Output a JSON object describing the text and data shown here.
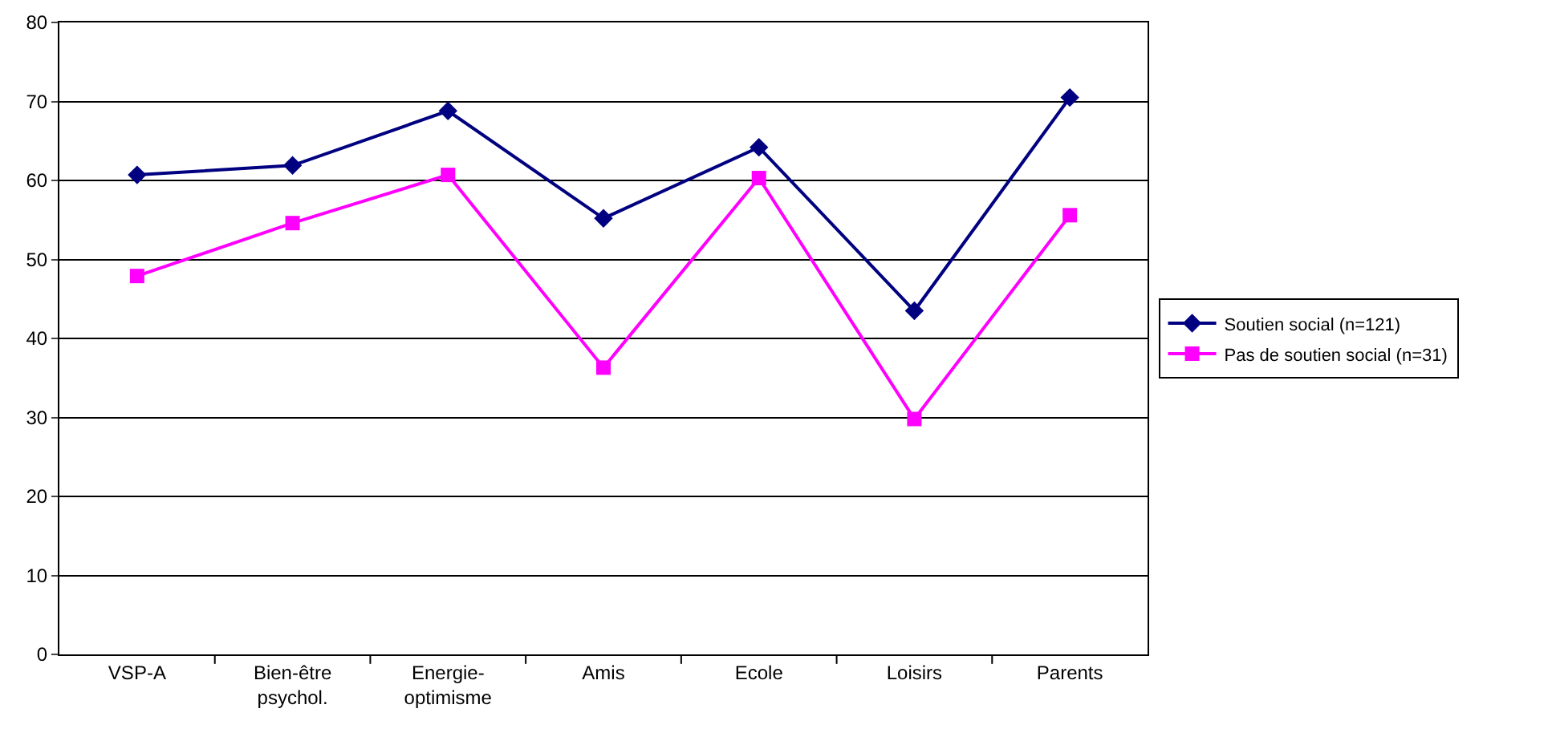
{
  "chart_data": {
    "type": "line",
    "categories": [
      "VSP-A",
      "Bien-être psychol.",
      "Energie-optimisme",
      "Amis",
      "Ecole",
      "Loisirs",
      "Parents"
    ],
    "series": [
      {
        "name": "Soutien social (n=121)",
        "color": "#000080",
        "marker": "diamond",
        "values": [
          60.7,
          61.9,
          68.8,
          55.2,
          64.2,
          43.5,
          70.5
        ]
      },
      {
        "name": "Pas de soutien social (n=31)",
        "color": "#ff00ff",
        "marker": "square",
        "values": [
          47.9,
          54.6,
          60.7,
          36.3,
          60.3,
          29.8,
          55.6
        ]
      }
    ],
    "ylim": [
      0,
      80
    ],
    "yticks": [
      0,
      10,
      20,
      30,
      40,
      50,
      60,
      70,
      80
    ],
    "grid": "y",
    "legend": "right",
    "line_style": "solid"
  }
}
